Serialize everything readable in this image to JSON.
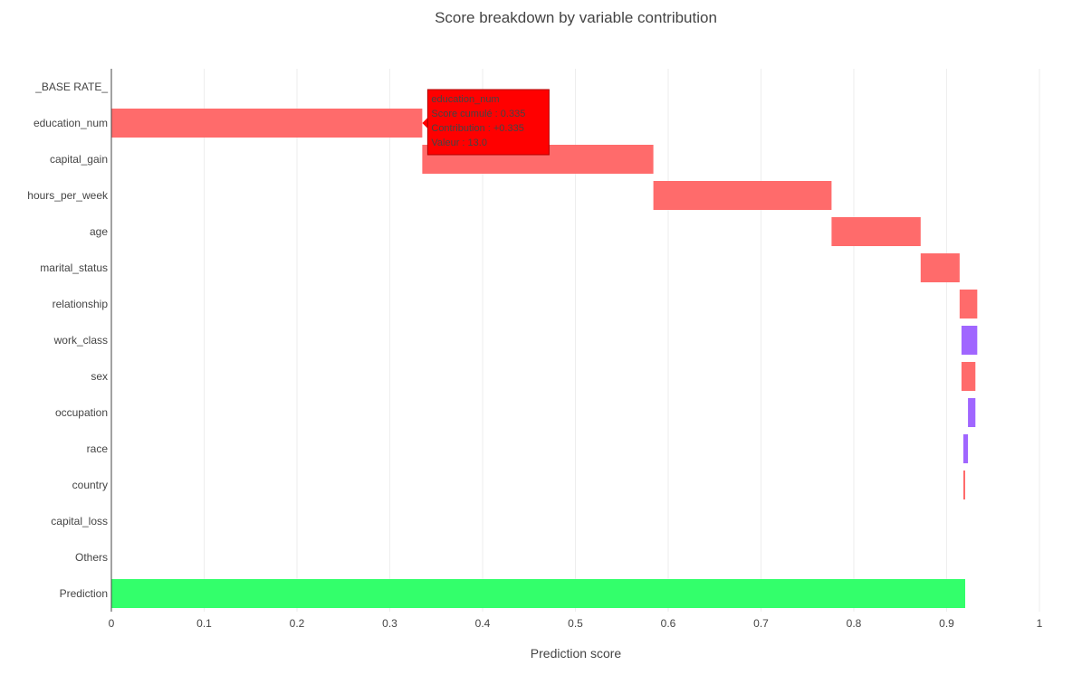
{
  "chart_data": {
    "type": "bar",
    "orientation": "horizontal-waterfall",
    "title": "Score breakdown by variable contribution",
    "xlabel": "Prediction score",
    "ylabel": "",
    "xlim": [
      0,
      1
    ],
    "x_ticks": [
      "0",
      "0.1",
      "0.2",
      "0.3",
      "0.4",
      "0.5",
      "0.6",
      "0.7",
      "0.8",
      "0.9",
      "1"
    ],
    "grid": true,
    "colors": {
      "positive": "#ff6b6b",
      "negative": "#a066ff",
      "prediction": "#33ff6b",
      "tooltip_bg": "#ff0000",
      "grid": "#eeeeee",
      "axis": "#444444"
    },
    "bars": [
      {
        "category": "_BASE RATE_",
        "start": 0,
        "end": 0,
        "kind": "base"
      },
      {
        "category": "education_num",
        "start": 0,
        "end": 0.335,
        "kind": "positive"
      },
      {
        "category": "capital_gain",
        "start": 0.335,
        "end": 0.584,
        "kind": "positive"
      },
      {
        "category": "hours_per_week",
        "start": 0.584,
        "end": 0.776,
        "kind": "positive"
      },
      {
        "category": "age",
        "start": 0.776,
        "end": 0.872,
        "kind": "positive"
      },
      {
        "category": "marital_status",
        "start": 0.872,
        "end": 0.914,
        "kind": "positive"
      },
      {
        "category": "relationship",
        "start": 0.914,
        "end": 0.933,
        "kind": "positive"
      },
      {
        "category": "work_class",
        "start": 0.933,
        "end": 0.916,
        "kind": "negative"
      },
      {
        "category": "sex",
        "start": 0.916,
        "end": 0.931,
        "kind": "positive"
      },
      {
        "category": "occupation",
        "start": 0.931,
        "end": 0.923,
        "kind": "negative"
      },
      {
        "category": "race",
        "start": 0.923,
        "end": 0.918,
        "kind": "negative"
      },
      {
        "category": "country",
        "start": 0.918,
        "end": 0.92,
        "kind": "positive"
      },
      {
        "category": "capital_loss",
        "start": 0.92,
        "end": 0.92,
        "kind": "positive"
      },
      {
        "category": "Others",
        "start": 0.92,
        "end": 0.92,
        "kind": "positive"
      },
      {
        "category": "Prediction",
        "start": 0,
        "end": 0.92,
        "kind": "prediction"
      }
    ],
    "tooltip": {
      "category": "education_num",
      "lines": [
        "education_num",
        "Score cumulé : 0.335",
        "Contribution : +0.335",
        "Valeur : 13.0"
      ]
    }
  }
}
